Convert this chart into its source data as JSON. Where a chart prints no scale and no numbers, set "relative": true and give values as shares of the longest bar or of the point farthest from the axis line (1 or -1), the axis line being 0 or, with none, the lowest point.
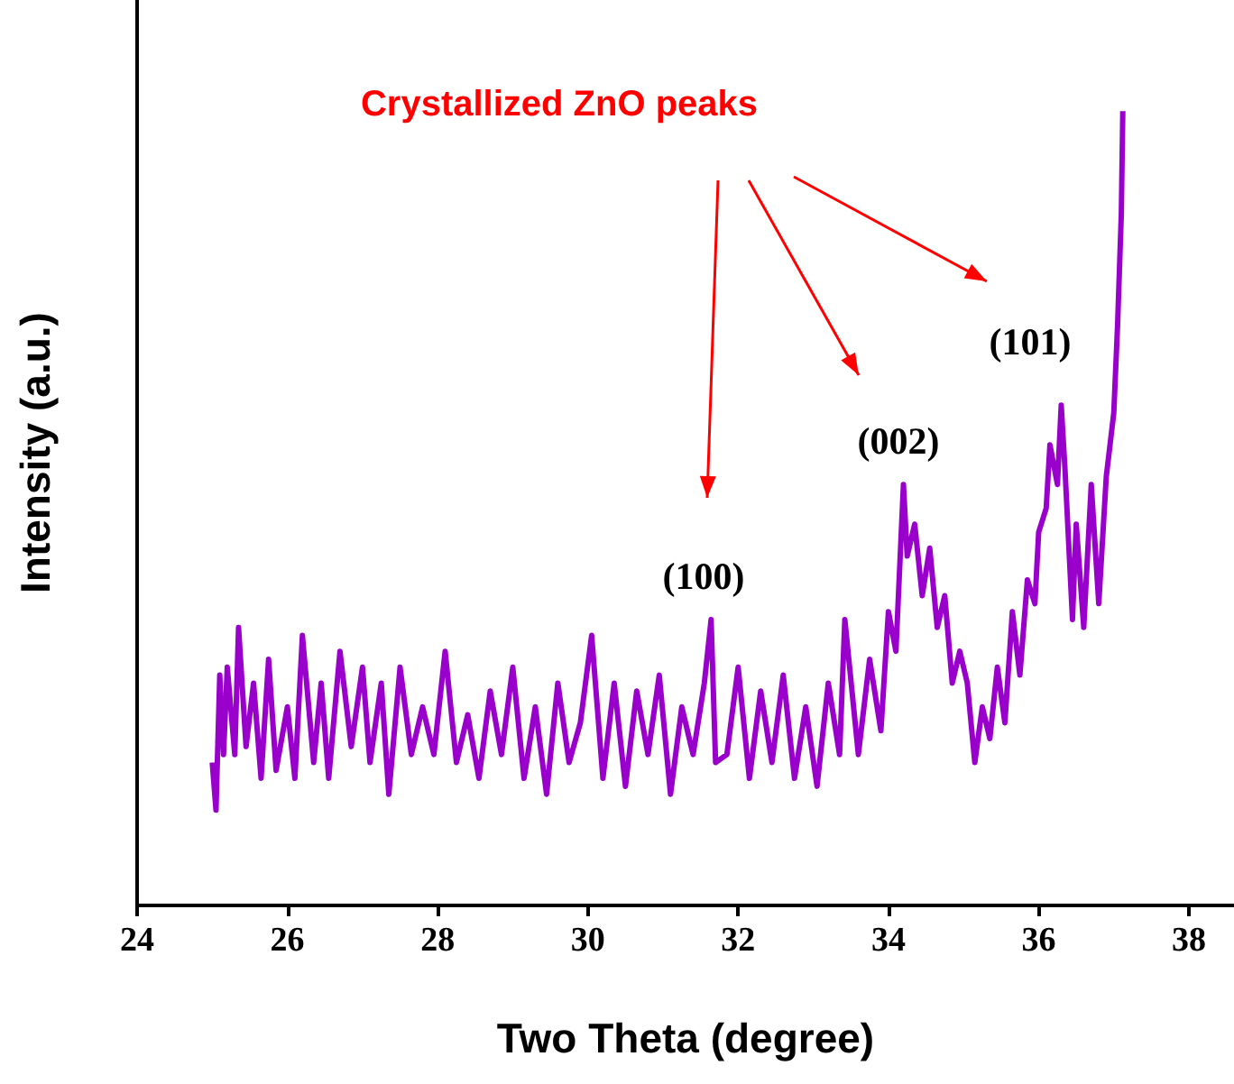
{
  "chart_data": {
    "type": "line",
    "xlabel": "Two Theta (degree)",
    "ylabel": "Intensity (a.u.)",
    "relative": true,
    "color": "#9900cc",
    "marker": "none",
    "grid": false,
    "xlim": [
      24,
      38.6
    ],
    "xticks": [
      24,
      26,
      28,
      30,
      32,
      34,
      36,
      38
    ],
    "x": [
      25.0,
      25.05,
      25.1,
      25.15,
      25.2,
      25.3,
      25.35,
      25.45,
      25.55,
      25.65,
      25.75,
      25.85,
      26.0,
      26.1,
      26.2,
      26.35,
      26.45,
      26.55,
      26.7,
      26.85,
      27.0,
      27.1,
      27.25,
      27.35,
      27.5,
      27.65,
      27.8,
      27.95,
      28.1,
      28.25,
      28.4,
      28.55,
      28.7,
      28.85,
      29.0,
      29.15,
      29.3,
      29.45,
      29.6,
      29.75,
      29.9,
      30.05,
      30.2,
      30.35,
      30.5,
      30.65,
      30.8,
      30.95,
      31.1,
      31.25,
      31.4,
      31.55,
      31.64,
      31.7,
      31.85,
      32.0,
      32.15,
      32.3,
      32.45,
      32.6,
      32.75,
      32.9,
      33.05,
      33.2,
      33.35,
      33.42,
      33.6,
      33.75,
      33.9,
      34.0,
      34.1,
      34.2,
      34.25,
      34.35,
      34.45,
      34.55,
      34.65,
      34.75,
      34.85,
      34.95,
      35.05,
      35.15,
      35.25,
      35.35,
      35.45,
      35.55,
      35.65,
      35.75,
      35.85,
      35.95,
      36.0,
      36.1,
      36.15,
      36.25,
      36.3,
      36.35,
      36.45,
      36.5,
      36.6,
      36.7,
      36.8,
      36.9,
      37.0,
      37.05,
      37.1,
      37.12
    ],
    "values": [
      0.18,
      0.12,
      0.29,
      0.19,
      0.3,
      0.19,
      0.35,
      0.2,
      0.28,
      0.16,
      0.31,
      0.17,
      0.25,
      0.16,
      0.34,
      0.18,
      0.28,
      0.16,
      0.32,
      0.2,
      0.3,
      0.18,
      0.28,
      0.14,
      0.3,
      0.19,
      0.25,
      0.19,
      0.32,
      0.18,
      0.24,
      0.16,
      0.27,
      0.19,
      0.3,
      0.16,
      0.25,
      0.14,
      0.28,
      0.18,
      0.23,
      0.34,
      0.16,
      0.28,
      0.15,
      0.27,
      0.19,
      0.29,
      0.14,
      0.25,
      0.19,
      0.28,
      0.36,
      0.18,
      0.19,
      0.3,
      0.16,
      0.27,
      0.18,
      0.29,
      0.16,
      0.25,
      0.15,
      0.28,
      0.19,
      0.36,
      0.19,
      0.31,
      0.22,
      0.37,
      0.32,
      0.53,
      0.44,
      0.48,
      0.39,
      0.45,
      0.35,
      0.39,
      0.28,
      0.32,
      0.28,
      0.18,
      0.25,
      0.21,
      0.3,
      0.23,
      0.37,
      0.29,
      0.41,
      0.38,
      0.47,
      0.5,
      0.58,
      0.53,
      0.63,
      0.55,
      0.36,
      0.48,
      0.35,
      0.53,
      0.38,
      0.54,
      0.62,
      0.73,
      0.87,
      1
    ],
    "annotations": [
      "Crystallized ZnO peaks",
      "(100)",
      "(002)",
      "(101)"
    ]
  }
}
